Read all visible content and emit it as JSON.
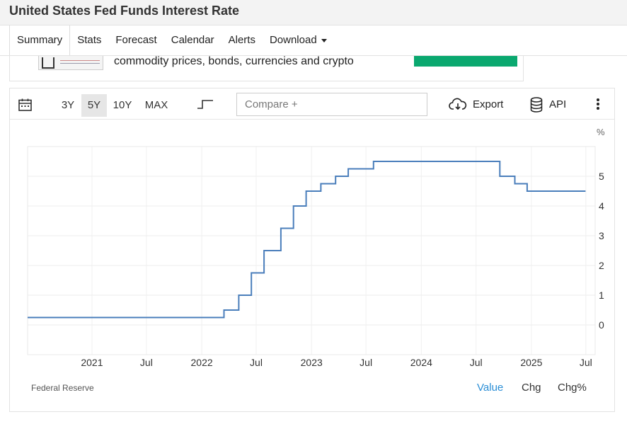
{
  "page": {
    "title": "United States Fed Funds Interest Rate"
  },
  "tabs": [
    {
      "label": "Summary"
    },
    {
      "label": "Stats"
    },
    {
      "label": "Forecast"
    },
    {
      "label": "Calendar"
    },
    {
      "label": "Alerts"
    },
    {
      "label": "Download"
    }
  ],
  "promo": {
    "text": "commodity prices, bonds, currencies and crypto"
  },
  "toolbar": {
    "ranges": [
      "3Y",
      "5Y",
      "10Y",
      "MAX"
    ],
    "active_range": "5Y",
    "compare_placeholder": "Compare +",
    "export_label": "Export",
    "api_label": "API",
    "icons": [
      "calendar-icon",
      "step-chart-icon",
      "cloud-download-icon",
      "database-icon",
      "more-vertical-icon"
    ]
  },
  "footer": {
    "source": "Federal Reserve",
    "modes": [
      "Value",
      "Chg",
      "Chg%"
    ],
    "active_mode": "Value"
  },
  "colors": {
    "line": "#4a7ebb",
    "accent": "#2a8ed6",
    "promo_button": "#0aa86f"
  },
  "chart_data": {
    "type": "line",
    "step": true,
    "unit": "%",
    "ylim": [
      -1,
      6
    ],
    "yticks": [
      0,
      1,
      2,
      3,
      4,
      5
    ],
    "y_axis_side": "right",
    "grid": true,
    "xlim": [
      "2020-06-01",
      "2025-08-01"
    ],
    "xticks": [
      {
        "date": "2021-01-01",
        "label": "2021"
      },
      {
        "date": "2021-07-01",
        "label": "Jul"
      },
      {
        "date": "2022-01-01",
        "label": "2022"
      },
      {
        "date": "2022-07-01",
        "label": "Jul"
      },
      {
        "date": "2023-01-01",
        "label": "2023"
      },
      {
        "date": "2023-07-01",
        "label": "Jul"
      },
      {
        "date": "2024-01-01",
        "label": "2024"
      },
      {
        "date": "2024-07-01",
        "label": "Jul"
      },
      {
        "date": "2025-01-01",
        "label": "2025"
      },
      {
        "date": "2025-07-01",
        "label": "Jul"
      }
    ],
    "series": [
      {
        "points": [
          [
            "2020-06-01",
            0.25
          ],
          [
            "2022-03-16",
            0.5
          ],
          [
            "2022-05-04",
            1.0
          ],
          [
            "2022-06-15",
            1.75
          ],
          [
            "2022-07-27",
            2.5
          ],
          [
            "2022-09-21",
            3.25
          ],
          [
            "2022-11-02",
            4.0
          ],
          [
            "2022-12-14",
            4.5
          ],
          [
            "2023-02-01",
            4.75
          ],
          [
            "2023-03-22",
            5.0
          ],
          [
            "2023-05-03",
            5.25
          ],
          [
            "2023-07-26",
            5.5
          ],
          [
            "2024-09-18",
            5.0
          ],
          [
            "2024-11-07",
            4.75
          ],
          [
            "2024-12-18",
            4.5
          ],
          [
            "2025-06-30",
            4.5
          ]
        ]
      }
    ]
  }
}
